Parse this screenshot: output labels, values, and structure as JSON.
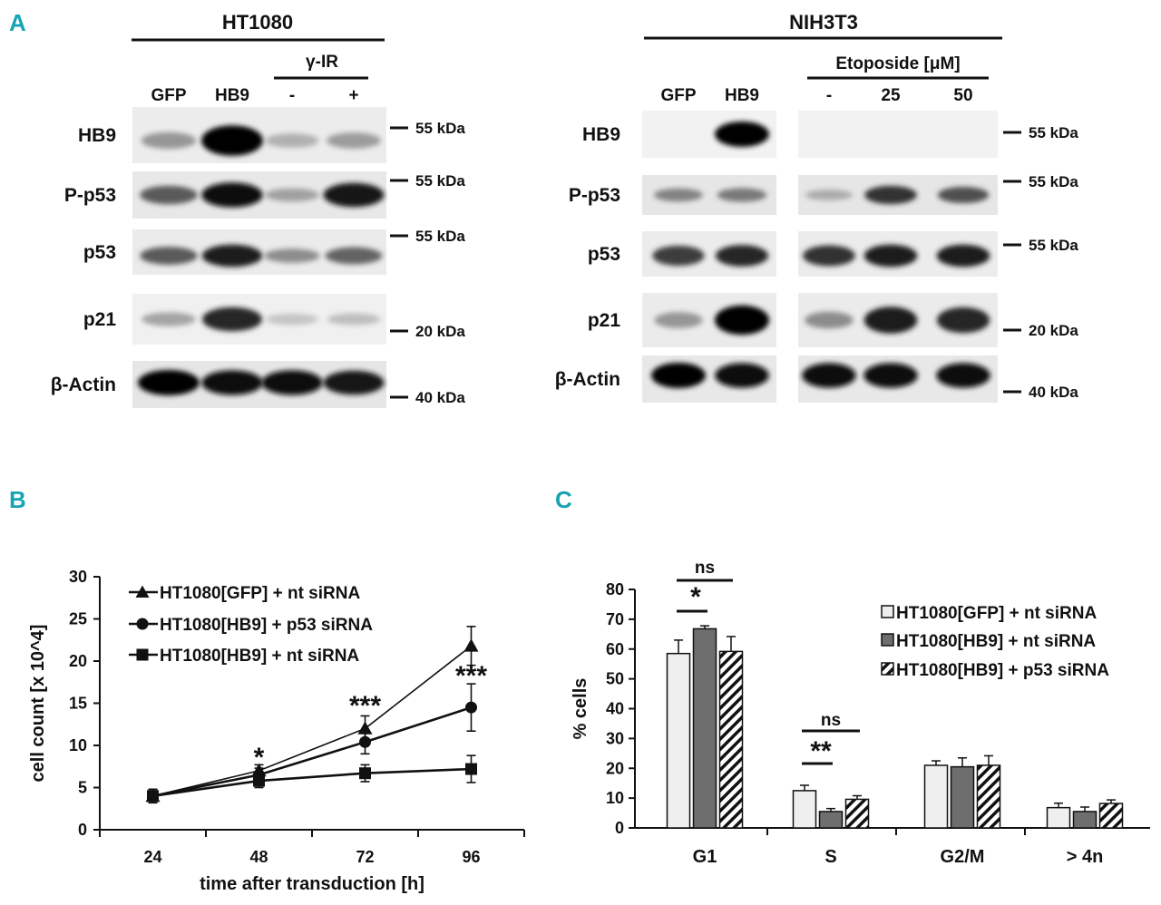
{
  "panelA": {
    "letter": "A",
    "ht1080": {
      "title": "HT1080",
      "treatment": "γ-IR",
      "lanes": [
        "GFP",
        "HB9",
        "-",
        "+"
      ],
      "proteins": [
        "HB9",
        "P-p53",
        "p53",
        "p21",
        "β-Actin"
      ],
      "markers": [
        "55 kDa",
        "55 kDa",
        "55 kDa",
        "20 kDa",
        "40 kDa"
      ]
    },
    "nih3t3": {
      "title": "NIH3T3",
      "treatment": "Etoposide [μM]",
      "lanes": [
        "GFP",
        "HB9",
        "-",
        "25",
        "50"
      ],
      "proteins": [
        "HB9",
        "P-p53",
        "p53",
        "p21",
        "β-Actin"
      ],
      "markers": [
        "55 kDa",
        "55 kDa",
        "55 kDa",
        "20 kDa",
        "40 kDa"
      ]
    }
  },
  "panelB": {
    "letter": "B",
    "chart_data": {
      "type": "line",
      "xlabel": "time after transduction [h]",
      "ylabel": "cell count [x 10^4]",
      "x": [
        24,
        48,
        72,
        96
      ],
      "ylim": [
        0,
        30
      ],
      "yticks": [
        0,
        5,
        10,
        15,
        20,
        25,
        30
      ],
      "series": [
        {
          "name": "HT1080[GFP] + nt siRNA",
          "marker": "triangle",
          "values": [
            4.0,
            7.0,
            12.0,
            21.8
          ],
          "errors": [
            0.8,
            0.7,
            1.5,
            2.3
          ]
        },
        {
          "name": "HT1080[HB9] + p53 siRNA",
          "marker": "circle",
          "values": [
            4.0,
            6.5,
            10.4,
            14.5
          ],
          "errors": [
            0.8,
            0.8,
            1.4,
            2.8
          ]
        },
        {
          "name": "HT1080[HB9] + nt siRNA",
          "marker": "square",
          "values": [
            4.0,
            5.8,
            6.7,
            7.2
          ],
          "errors": [
            0.8,
            0.8,
            1.0,
            1.6
          ]
        }
      ],
      "annotations": [
        {
          "x": 48,
          "text": "*"
        },
        {
          "x": 72,
          "text": "***"
        },
        {
          "x": 96,
          "text": "***"
        }
      ]
    }
  },
  "panelC": {
    "letter": "C",
    "chart_data": {
      "type": "bar",
      "ylabel": "% cells",
      "categories": [
        "G1",
        "S",
        "G2/M",
        "> 4n"
      ],
      "ylim": [
        0,
        80
      ],
      "yticks": [
        0,
        10,
        20,
        30,
        40,
        50,
        60,
        70,
        80
      ],
      "series": [
        {
          "name": "HT1080[GFP] + nt siRNA",
          "fill": "#efefef",
          "values": [
            58.5,
            12.5,
            21.0,
            6.8
          ],
          "errors": [
            4.5,
            1.8,
            1.5,
            1.5
          ]
        },
        {
          "name": "HT1080[HB9] + nt siRNA",
          "fill": "#6e6e6e",
          "values": [
            66.8,
            5.5,
            20.5,
            5.5
          ],
          "errors": [
            1.0,
            1.0,
            3.0,
            1.5
          ]
        },
        {
          "name": "HT1080[HB9] + p53 siRNA",
          "fill": "hatch",
          "values": [
            59.2,
            9.6,
            21.0,
            8.2
          ],
          "errors": [
            5.0,
            1.2,
            3.2,
            1.2
          ]
        }
      ],
      "significance": [
        {
          "category": "G1",
          "label": "ns",
          "level": "upper"
        },
        {
          "category": "G1",
          "label": "*",
          "level": "lower"
        },
        {
          "category": "S",
          "label": "ns",
          "level": "upper"
        },
        {
          "category": "S",
          "label": "**",
          "level": "lower"
        }
      ]
    }
  }
}
